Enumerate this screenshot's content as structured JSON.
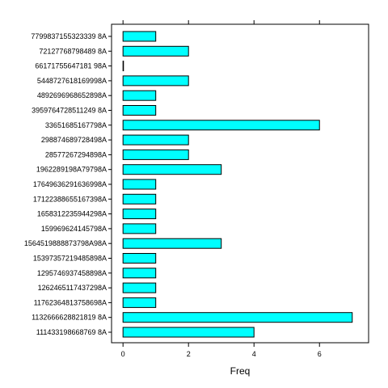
{
  "chart_data": {
    "type": "bar",
    "orientation": "horizontal",
    "title": "",
    "xlabel": "Freq",
    "ylabel": "",
    "xlim": [
      -0.35,
      7.5
    ],
    "xticks": [
      0,
      2,
      4,
      6
    ],
    "grid": false,
    "bar_color": "#00ffff",
    "bar_border_color": "#000000",
    "categories": [
      "7799837155323339 8A",
      "72127768798489 8A",
      "66171755647181 98A",
      "5448727618169998A",
      "4892696968652898A",
      "3959764728511249 8A",
      "33651685167798A",
      "298874689728498A",
      "28577267294898A",
      "1962289198A79798A",
      "17649636291636998A",
      "17122388655167398A",
      "1658312235944298A",
      "159969624145798A",
      "1564519888873798A98A",
      "15397357219485898A",
      "1295746937458898A",
      "1262465117437298A",
      "11762364813758698A",
      "1132666628821819 8A",
      "111433198668769 8A"
    ],
    "values": [
      1,
      2,
      0,
      2,
      1,
      1,
      6,
      2,
      2,
      3,
      1,
      1,
      1,
      1,
      3,
      1,
      1,
      1,
      1,
      7,
      4
    ]
  }
}
